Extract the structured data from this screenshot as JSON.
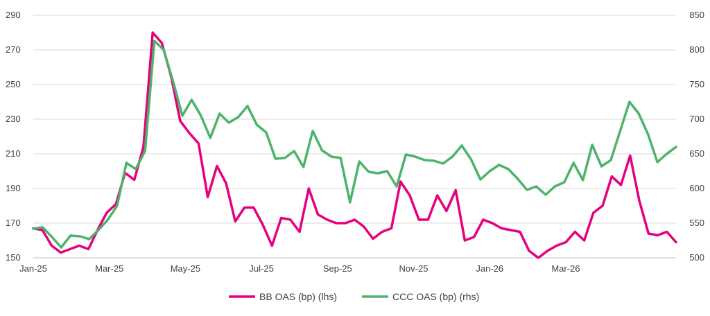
{
  "chart_data": {
    "type": "line",
    "title": "",
    "x_tick_labels": [
      "Jan-25",
      "Mar-25",
      "May-25",
      "Jul-25",
      "Sep-25",
      "Nov-25",
      "Jan-26",
      "Mar-26"
    ],
    "y_left": {
      "label": "",
      "lim": [
        150,
        290
      ],
      "ticks": [
        150,
        170,
        190,
        210,
        230,
        250,
        270,
        290
      ]
    },
    "y_right": {
      "label": "",
      "lim": [
        500,
        850
      ],
      "ticks": [
        500,
        550,
        600,
        650,
        700,
        750,
        800,
        850
      ]
    },
    "grid": "horizontal",
    "legend_position": "bottom",
    "series": [
      {
        "name": "BB OAS (bp) (lhs)",
        "axis": "left",
        "color": "#E6007E",
        "values": [
          167,
          166,
          157,
          153,
          155,
          157,
          155,
          166,
          176,
          181,
          199,
          195,
          214,
          280,
          274,
          255,
          229,
          222,
          216,
          185,
          203,
          193,
          171,
          179,
          179,
          169,
          157,
          173,
          172,
          165,
          190,
          175,
          172,
          170,
          170,
          172,
          168,
          161,
          165,
          167,
          194,
          186,
          172,
          172,
          186,
          177,
          189,
          160,
          162,
          172,
          170,
          167,
          166,
          165,
          154,
          150,
          154,
          157,
          159,
          165,
          160,
          176,
          180,
          197,
          192,
          209,
          183,
          164,
          163,
          165,
          159
        ]
      },
      {
        "name": "CCC OAS (bp) (rhs)",
        "axis": "right",
        "color": "#4CB46A",
        "values": [
          542,
          544,
          530,
          515,
          532,
          531,
          527,
          540,
          555,
          575,
          637,
          628,
          654,
          813,
          800,
          755,
          705,
          728,
          705,
          673,
          708,
          695,
          703,
          719,
          692,
          681,
          643,
          644,
          654,
          631,
          683,
          655,
          646,
          644,
          580,
          639,
          624,
          622,
          625,
          603,
          649,
          646,
          641,
          640,
          636,
          646,
          662,
          642,
          613,
          625,
          634,
          628,
          614,
          598,
          603,
          591,
          603,
          609,
          637,
          612,
          663,
          632,
          641,
          683,
          725,
          708,
          678,
          638,
          650,
          660
        ]
      }
    ]
  }
}
